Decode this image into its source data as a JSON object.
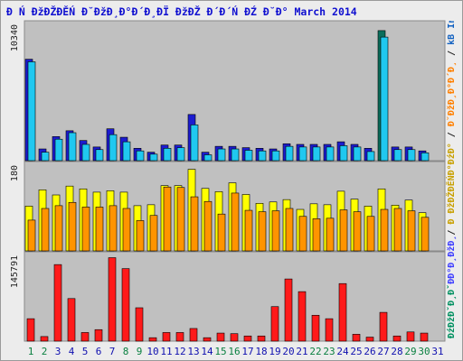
{
  "title": "Đ Ń ĐžĐŽĐĚŃ Đ˘ĐžĐ¸Đ°Đ´Đ¸ĐÏ ĐžĐŽ Đ´Đ´Ń ĐŹ Đ˘Đ° March 2014",
  "legend": [
    {
      "text": "ĐźĐžĐˇĐ¸Đˇ",
      "color": "#009060"
    },
    {
      "text": "ĐĐ°Đ¸ĐžĐ¸",
      "color": "#4040ff"
    },
    {
      "text": "/ ",
      "color": "#222222"
    },
    {
      "text": "Đ ĐžĐŽĐĚŃĐ°ĐźĐ°",
      "color": "#c8a000"
    },
    {
      "text": " / ",
      "color": "#222222"
    },
    {
      "text": "Đ˘ĐžĐ¸Đ°Đ´Đ¸",
      "color": "#ff8000"
    },
    {
      "text": " / ",
      "color": "#222222"
    },
    {
      "text": "kB In",
      "color": "#1060c0"
    },
    {
      "text": " / ",
      "color": "#222222"
    },
    {
      "text": "kB F",
      "color": "#e01010"
    }
  ],
  "colors": {
    "visits": "#0a6e5c",
    "pages_dark": "#1c1cd0",
    "pages_light": "#20c8f0",
    "hits_yellow": "#ffff00",
    "files_orange": "#ff9400",
    "bandwidth_red": "#ff1a1a",
    "panel_bg": "#c0c0c0",
    "weekend_label": "#0a8040",
    "weekday_label": "#1010b0"
  },
  "chart_data": [
    {
      "type": "bar",
      "panel": "visits-pages",
      "ylabel": "10340",
      "ymax": 10340,
      "categories": [
        "1",
        "2",
        "3",
        "4",
        "5",
        "6",
        "7",
        "8",
        "9",
        "10",
        "11",
        "12",
        "13",
        "14",
        "15",
        "16",
        "17",
        "18",
        "19",
        "20",
        "21",
        "22",
        "23",
        "24",
        "25",
        "26",
        "27",
        "28",
        "29",
        "30",
        "31"
      ],
      "series": [
        {
          "values": [
            7800,
            900,
            1850,
            2300,
            1550,
            1050,
            2450,
            1800,
            950,
            650,
            1200,
            1200,
            3550,
            650,
            1100,
            1100,
            1000,
            950,
            900,
            1300,
            1250,
            1250,
            1250,
            1450,
            1250,
            950,
            10000,
            1050,
            1050,
            750,
            0
          ]
        },
        {
          "values": [
            7600,
            650,
            1650,
            2150,
            1250,
            850,
            2000,
            1450,
            750,
            500,
            950,
            1000,
            2750,
            450,
            900,
            900,
            800,
            750,
            750,
            1100,
            1050,
            1050,
            1050,
            1150,
            1050,
            700,
            9500,
            850,
            850,
            600,
            0
          ]
        }
      ]
    },
    {
      "type": "bar",
      "panel": "hits-files",
      "ylabel": "180",
      "ymax": 180,
      "categories": [
        "1",
        "2",
        "3",
        "4",
        "5",
        "6",
        "7",
        "8",
        "9",
        "10",
        "11",
        "12",
        "13",
        "14",
        "15",
        "16",
        "17",
        "18",
        "19",
        "20",
        "21",
        "22",
        "23",
        "24",
        "25",
        "26",
        "27",
        "28",
        "29",
        "30",
        "31"
      ],
      "series": [
        {
          "values": [
            96,
            131,
            120,
            139,
            133,
            126,
            129,
            126,
            97,
            99,
            140,
            140,
            175,
            134,
            127,
            146,
            121,
            102,
            105,
            110,
            89,
            101,
            99,
            128,
            111,
            96,
            133,
            98,
            109,
            82,
            0
          ]
        },
        {
          "values": [
            66,
            91,
            97,
            104,
            94,
            94,
            97,
            91,
            65,
            76,
            137,
            136,
            116,
            106,
            79,
            124,
            87,
            84,
            86,
            91,
            74,
            69,
            70,
            88,
            84,
            74,
            89,
            91,
            86,
            72,
            0
          ]
        }
      ]
    },
    {
      "type": "bar",
      "panel": "bandwidth",
      "ylabel": "145791",
      "ymax": 145791,
      "categories": [
        "1",
        "2",
        "3",
        "4",
        "5",
        "6",
        "7",
        "8",
        "9",
        "10",
        "11",
        "12",
        "13",
        "14",
        "15",
        "16",
        "17",
        "18",
        "19",
        "20",
        "21",
        "22",
        "23",
        "24",
        "25",
        "26",
        "27",
        "28",
        "29",
        "30",
        "31"
      ],
      "series": [
        {
          "values": [
            39000,
            8000,
            133000,
            74000,
            15000,
            20000,
            145000,
            126000,
            58000,
            6000,
            15000,
            15000,
            22000,
            6000,
            14000,
            13000,
            9000,
            9000,
            60000,
            108000,
            86000,
            45000,
            39000,
            100000,
            12000,
            7000,
            50000,
            9000,
            16000,
            14000,
            0
          ]
        }
      ]
    }
  ],
  "days": [
    {
      "label": "1",
      "weekend": true
    },
    {
      "label": "2",
      "weekend": true
    },
    {
      "label": "3",
      "weekend": false
    },
    {
      "label": "4",
      "weekend": false
    },
    {
      "label": "5",
      "weekend": false
    },
    {
      "label": "6",
      "weekend": false
    },
    {
      "label": "7",
      "weekend": false
    },
    {
      "label": "8",
      "weekend": true
    },
    {
      "label": "9",
      "weekend": true
    },
    {
      "label": "10",
      "weekend": false
    },
    {
      "label": "11",
      "weekend": false
    },
    {
      "label": "12",
      "weekend": false
    },
    {
      "label": "13",
      "weekend": false
    },
    {
      "label": "14",
      "weekend": false
    },
    {
      "label": "15",
      "weekend": true
    },
    {
      "label": "16",
      "weekend": true
    },
    {
      "label": "17",
      "weekend": false
    },
    {
      "label": "18",
      "weekend": false
    },
    {
      "label": "19",
      "weekend": false
    },
    {
      "label": "20",
      "weekend": false
    },
    {
      "label": "21",
      "weekend": false
    },
    {
      "label": "22",
      "weekend": true
    },
    {
      "label": "23",
      "weekend": true
    },
    {
      "label": "24",
      "weekend": false
    },
    {
      "label": "25",
      "weekend": false
    },
    {
      "label": "26",
      "weekend": false
    },
    {
      "label": "27",
      "weekend": false
    },
    {
      "label": "28",
      "weekend": false
    },
    {
      "label": "29",
      "weekend": true
    },
    {
      "label": "30",
      "weekend": true
    },
    {
      "label": "31",
      "weekend": false
    }
  ]
}
